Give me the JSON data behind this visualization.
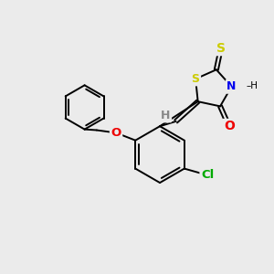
{
  "background_color": "#ebebeb",
  "bond_color": "#000000",
  "atom_colors": {
    "S": "#cccc00",
    "N": "#0000ee",
    "O": "#ee0000",
    "Cl": "#00aa00",
    "H": "#888888",
    "C": "#000000"
  },
  "figsize": [
    3.0,
    3.0
  ],
  "dpi": 100,
  "lw": 1.4
}
